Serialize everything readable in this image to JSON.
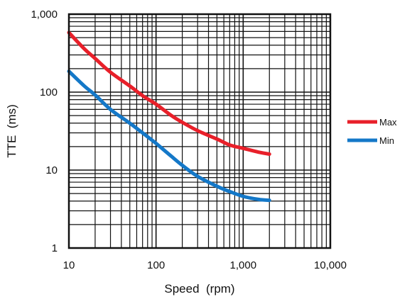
{
  "chart_data": {
    "type": "line",
    "title": "",
    "xlabel": "Speed  (rpm)",
    "ylabel": "TTE  (ms)",
    "x_scale": "log",
    "y_scale": "log",
    "xlim": [
      10,
      10000
    ],
    "ylim": [
      1,
      1000
    ],
    "x_ticks": [
      10,
      100,
      1000,
      10000
    ],
    "x_tick_labels": [
      "10",
      "100",
      "1,000",
      "10,000"
    ],
    "y_ticks": [
      1,
      10,
      100,
      1000
    ],
    "y_tick_labels": [
      "1",
      "10",
      "100",
      "1,000"
    ],
    "grid": true,
    "legend_position": "right",
    "series": [
      {
        "name": "Max",
        "color": "#e8202a",
        "x": [
          10,
          15,
          20,
          30,
          50,
          70,
          100,
          150,
          200,
          300,
          500,
          700,
          1000,
          1500,
          2000
        ],
        "y": [
          580,
          360,
          270,
          180,
          120,
          90,
          70,
          50,
          41,
          32,
          25,
          21,
          19,
          17,
          16
        ]
      },
      {
        "name": "Min",
        "color": "#1478c8",
        "x": [
          10,
          15,
          20,
          30,
          50,
          70,
          100,
          150,
          200,
          300,
          500,
          700,
          1000,
          1500,
          2000
        ],
        "y": [
          185,
          120,
          92,
          60,
          40,
          30,
          22,
          15,
          11.5,
          8.3,
          6.2,
          5.3,
          4.6,
          4.2,
          4.1
        ]
      }
    ]
  }
}
